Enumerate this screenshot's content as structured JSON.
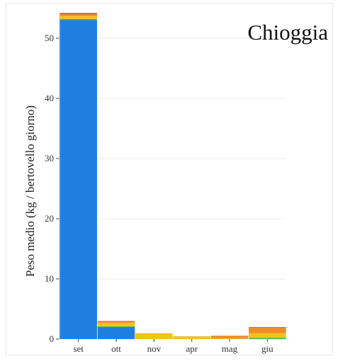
{
  "chart_data": {
    "type": "bar",
    "stacked": true,
    "title": "Chioggia",
    "ylabel": "Peso medio (kg / bertovello giorno)",
    "xlabel": "",
    "categories": [
      "set",
      "ott",
      "nov",
      "apr",
      "mag",
      "giu"
    ],
    "ylim": [
      0,
      54
    ],
    "yticks": [
      0,
      10,
      20,
      30,
      40,
      50
    ],
    "grid": true,
    "series": [
      {
        "color": "#1f7fe0",
        "values": [
          53.0,
          2.0,
          0.0,
          0.0,
          0.0,
          0.0
        ]
      },
      {
        "color": "#4caf50",
        "values": [
          0.2,
          0.1,
          0.0,
          0.0,
          0.0,
          0.2
        ]
      },
      {
        "color": "#f0c419",
        "values": [
          0.5,
          0.6,
          0.9,
          0.4,
          0.1,
          0.8
        ]
      },
      {
        "color": "#f28a2e",
        "values": [
          0.3,
          0.2,
          0.05,
          0.05,
          0.4,
          0.9
        ]
      },
      {
        "color": "#e74c3c",
        "values": [
          0.2,
          0.1,
          0.0,
          0.0,
          0.05,
          0.1
        ]
      }
    ]
  }
}
